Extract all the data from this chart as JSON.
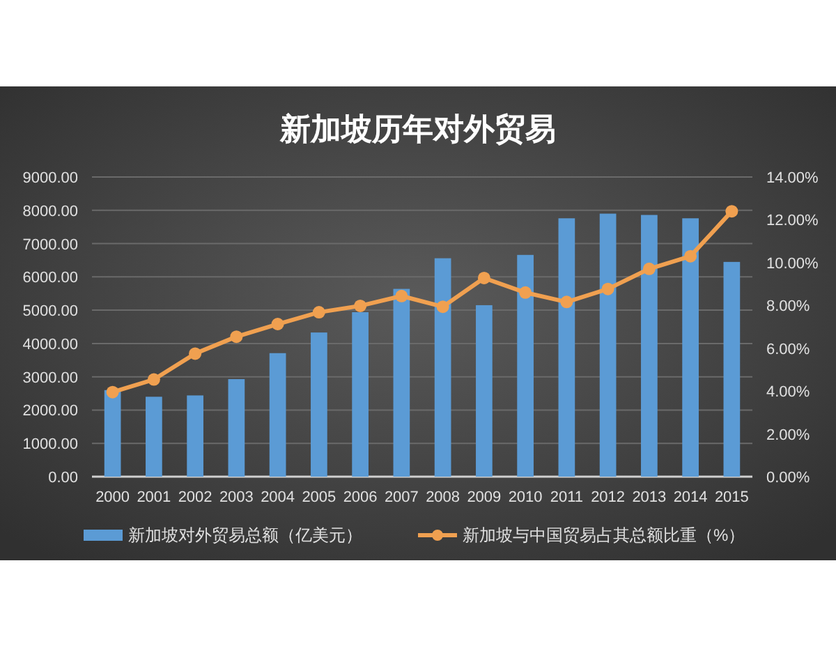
{
  "chart_data": {
    "type": "bar",
    "title": "新加坡历年对外贸易",
    "categories": [
      "2000",
      "2001",
      "2002",
      "2003",
      "2004",
      "2005",
      "2006",
      "2007",
      "2008",
      "2009",
      "2010",
      "2011",
      "2012",
      "2013",
      "2014",
      "2015"
    ],
    "series": [
      {
        "name": "新加坡对外贸易总额（亿美元）",
        "color": "#5b9bd5",
        "values": [
          2600,
          2400,
          2440,
          2930,
          3710,
          4330,
          4940,
          5640,
          6560,
          5150,
          6660,
          7760,
          7900,
          7860,
          7760,
          6450
        ]
      },
      {
        "name": "新加坡与中国贸易占其总额比重（%）",
        "type": "line",
        "axis": "y2",
        "color": "#f0a050",
        "marker": "circle",
        "values": [
          3.95,
          4.54,
          5.75,
          6.54,
          7.13,
          7.68,
          7.98,
          8.44,
          7.94,
          9.28,
          8.6,
          8.16,
          8.77,
          9.71,
          10.3,
          12.4
        ]
      }
    ],
    "ylim": [
      0,
      9000
    ],
    "yticks": [
      {
        "value": 0,
        "label": "0.00"
      },
      {
        "value": 1000,
        "label": "1000.00"
      },
      {
        "value": 2000,
        "label": "2000.00"
      },
      {
        "value": 3000,
        "label": "3000.00"
      },
      {
        "value": 4000,
        "label": "4000.00"
      },
      {
        "value": 5000,
        "label": "5000.00"
      },
      {
        "value": 6000,
        "label": "6000.00"
      },
      {
        "value": 7000,
        "label": "7000.00"
      },
      {
        "value": 8000,
        "label": "8000.00"
      },
      {
        "value": 9000,
        "label": "9000.00"
      }
    ],
    "y2lim": [
      0,
      14
    ],
    "y2ticks": [
      {
        "value": 0,
        "label": "0.00%"
      },
      {
        "value": 2,
        "label": "2.00%"
      },
      {
        "value": 4,
        "label": "4.00%"
      },
      {
        "value": 6,
        "label": "6.00%"
      },
      {
        "value": 8,
        "label": "8.00%"
      },
      {
        "value": 10,
        "label": "10.00%"
      },
      {
        "value": 12,
        "label": "12.00%"
      },
      {
        "value": 14,
        "label": "14.00%"
      }
    ],
    "grid": "y",
    "legend": "bottom"
  }
}
